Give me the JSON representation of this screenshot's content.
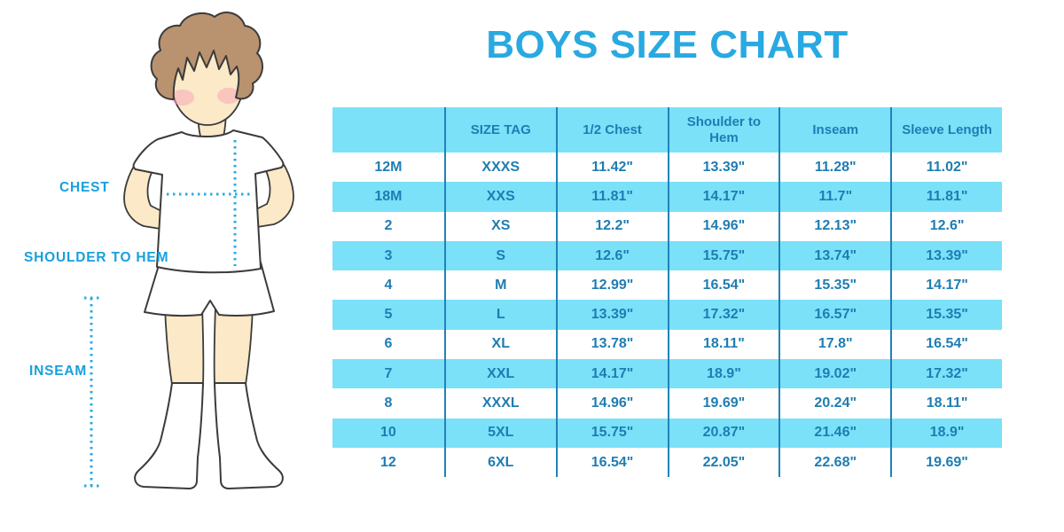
{
  "page": {
    "title": "BOYS SIZE CHART"
  },
  "figure": {
    "illustration": "boy-with-measurement-lines",
    "chest_label": "CHEST",
    "shoulder_to_hem_label": "SHOULDER TO HEM",
    "inseam_label": "INSEAM"
  },
  "chart_data": {
    "type": "table",
    "title": "BOYS SIZE CHART",
    "columns": [
      "",
      "SIZE TAG",
      "1/2 Chest",
      "Shoulder to\nHem",
      "Inseam",
      "Sleeve Length"
    ],
    "rows": [
      [
        "12M",
        "XXXS",
        "11.42\"",
        "13.39\"",
        "11.28\"",
        "11.02\""
      ],
      [
        "18M",
        "XXS",
        "11.81\"",
        "14.17\"",
        "11.7\"",
        "11.81\""
      ],
      [
        "2",
        "XS",
        "12.2\"",
        "14.96\"",
        "12.13\"",
        "12.6\""
      ],
      [
        "3",
        "S",
        "12.6\"",
        "15.75\"",
        "13.74\"",
        "13.39\""
      ],
      [
        "4",
        "M",
        "12.99\"",
        "16.54\"",
        "15.35\"",
        "14.17\""
      ],
      [
        "5",
        "L",
        "13.39\"",
        "17.32\"",
        "16.57\"",
        "15.35\""
      ],
      [
        "6",
        "XL",
        "13.78\"",
        "18.11\"",
        "17.8\"",
        "16.54\""
      ],
      [
        "7",
        "XXL",
        "14.17\"",
        "18.9\"",
        "19.02\"",
        "17.32\""
      ],
      [
        "8",
        "XXXL",
        "14.96\"",
        "19.69\"",
        "20.24\"",
        "18.11\""
      ],
      [
        "10",
        "5XL",
        "15.75\"",
        "20.87\"",
        "21.46\"",
        "18.9\""
      ],
      [
        "12",
        "6XL",
        "16.54\"",
        "22.05\"",
        "22.68\"",
        "19.69\""
      ]
    ],
    "layout": {
      "striped": "alternate rows light blue starting with row 18M",
      "grid": "vertical column dividers only"
    }
  },
  "colors": {
    "title_blue": "#29A9E1",
    "label_blue": "#18A0DE",
    "table_fill_blue": "#7BE1F9",
    "table_text_blue": "#1E7DB2",
    "column_divider_blue": "#1F83B8",
    "dotted_line_cyan": "#29ABE2",
    "skin": "#FBE9C7",
    "hair_brown": "#B9926F",
    "cheek_pink": "#F5A8B8",
    "outline": "#3B3B3B",
    "background": "#FFFFFF"
  }
}
